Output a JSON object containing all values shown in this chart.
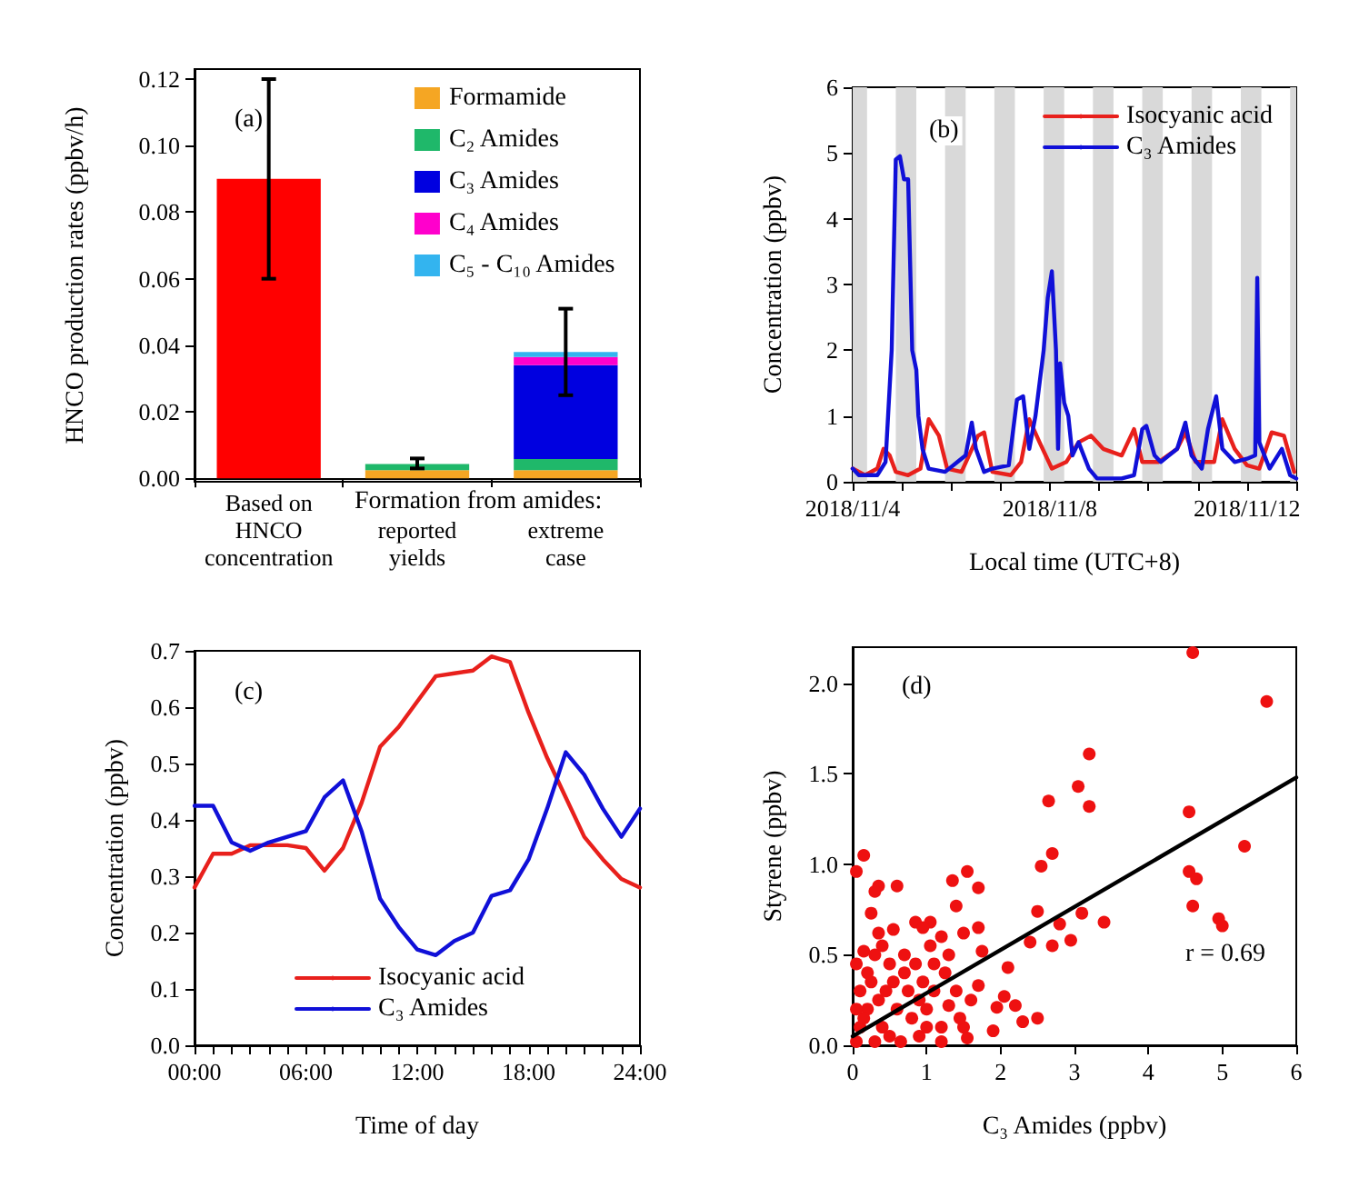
{
  "chart_data": [
    {
      "type": "bar",
      "stacked": true,
      "ylabel": "HNCO production rates (ppbv/h)",
      "categories": [
        "Based on\nHNCO\nconcentration",
        "reported\nyields",
        "extreme\ncase"
      ],
      "series": [
        {
          "color": "#ff0000",
          "values": [
            0.09,
            null,
            null
          ],
          "errors": [
            [
              0.06,
              0.12
            ],
            null,
            null
          ]
        },
        {
          "name": "Formamide",
          "color": "#f5a623",
          "values": [
            null,
            0.0025,
            0.0025
          ]
        },
        {
          "name": "C₂ Amides",
          "color": "#1fb86a",
          "values": [
            null,
            0.0018,
            0.0033
          ],
          "errors": [
            null,
            [
              0.003,
              0.006
            ],
            null
          ]
        },
        {
          "name": "C₃ Amides",
          "color": "#0000e0",
          "values": [
            null,
            null,
            0.0282
          ]
        },
        {
          "name": "C₄ Amides",
          "color": "#ff00cc",
          "values": [
            null,
            null,
            0.0025
          ]
        },
        {
          "name": "C₅ - C₁₀ Amides",
          "color": "#33b4ef",
          "values": [
            null,
            null,
            0.0015
          ],
          "errors": [
            null,
            null,
            [
              0.025,
              0.051
            ]
          ]
        }
      ],
      "ylim": [
        -0.001,
        0.123
      ],
      "yticks": [
        {
          "value": 0,
          "label": "0.00"
        },
        0.02,
        0.04,
        0.06,
        0.08,
        {
          "value": 0.1,
          "label": "0.10"
        },
        0.12
      ],
      "legend": "top right",
      "annotations": [
        "(a)",
        "Formation from amides:"
      ]
    },
    {
      "type": "line",
      "xlabel": "Local time (UTC+8)",
      "ylabel": "Concentration (ppbv)",
      "series": [
        {
          "name": "Isocyanic acid",
          "color": "#e8201c",
          "x": [
            "2018-11-04T00:00",
            "2018-11-04T06:00",
            "2018-11-04T12:00",
            "2018-11-04T15:00",
            "2018-11-04T18:00",
            "2018-11-04T21:00",
            "2018-11-05T03:00",
            "2018-11-05T09:00",
            "2018-11-05T13:00",
            "2018-11-05T18:00",
            "2018-11-05T22:00",
            "2018-11-06T05:00",
            "2018-11-06T13:00",
            "2018-11-06T16:00",
            "2018-11-06T20:00",
            "2018-11-07T05:00",
            "2018-11-07T10:00",
            "2018-11-07T14:00",
            "2018-11-07T19:00",
            "2018-11-08T01:00",
            "2018-11-08T08:00",
            "2018-11-08T14:00",
            "2018-11-08T20:00",
            "2018-11-09T02:00",
            "2018-11-09T11:00",
            "2018-11-09T17:00",
            "2018-11-09T21:00",
            "2018-11-10T05:00",
            "2018-11-10T14:00",
            "2018-11-10T18:00",
            "2018-11-10T23:00",
            "2018-11-11T08:00",
            "2018-11-11T12:00",
            "2018-11-11T18:00",
            "2018-11-12T00:00",
            "2018-11-12T06:00",
            "2018-11-12T12:00",
            "2018-11-12T18:00",
            "2018-11-12T23:00"
          ],
          "values": [
            0.2,
            0.1,
            0.2,
            0.5,
            0.4,
            0.15,
            0.1,
            0.2,
            0.95,
            0.7,
            0.2,
            0.15,
            0.7,
            0.75,
            0.15,
            0.1,
            0.3,
            0.95,
            0.6,
            0.2,
            0.3,
            0.6,
            0.7,
            0.5,
            0.4,
            0.8,
            0.3,
            0.3,
            0.5,
            0.75,
            0.3,
            0.3,
            0.95,
            0.5,
            0.25,
            0.2,
            0.75,
            0.7,
            0.15
          ]
        },
        {
          "name": "C₃ Amides",
          "color": "#1010d8",
          "x": [
            "2018-11-04T00:00",
            "2018-11-04T03:00",
            "2018-11-04T12:00",
            "2018-11-04T16:00",
            "2018-11-04T19:00",
            "2018-11-04T21:00",
            "2018-11-04T23:00",
            "2018-11-05T01:00",
            "2018-11-05T03:00",
            "2018-11-05T05:00",
            "2018-11-05T07:00",
            "2018-11-05T08:00",
            "2018-11-05T10:00",
            "2018-11-05T13:00",
            "2018-11-05T21:00",
            "2018-11-06T03:00",
            "2018-11-06T07:00",
            "2018-11-06T10:00",
            "2018-11-06T12:00",
            "2018-11-06T16:00",
            "2018-11-06T20:00",
            "2018-11-07T04:00",
            "2018-11-07T08:00",
            "2018-11-07T11:00",
            "2018-11-07T14:00",
            "2018-11-07T17:00",
            "2018-11-07T21:00",
            "2018-11-07T23:00",
            "2018-11-08T01:00",
            "2018-11-08T03:00",
            "2018-11-08T04:00",
            "2018-11-08T05:00",
            "2018-11-08T07:00",
            "2018-11-08T09:00",
            "2018-11-08T11:00",
            "2018-11-08T14:00",
            "2018-11-08T19:00",
            "2018-11-08T23:00",
            "2018-11-09T11:00",
            "2018-11-09T17:00",
            "2018-11-09T21:00",
            "2018-11-09T23:00",
            "2018-11-10T03:00",
            "2018-11-10T06:00",
            "2018-11-10T14:00",
            "2018-11-10T18:00",
            "2018-11-10T21:00",
            "2018-11-11T02:00",
            "2018-11-11T05:00",
            "2018-11-11T09:00",
            "2018-11-11T12:00",
            "2018-11-11T18:00",
            "2018-11-12T00:00",
            "2018-11-12T04:00",
            "2018-11-12T05:00",
            "2018-11-12T06:00",
            "2018-11-12T11:00",
            "2018-11-12T17:00",
            "2018-11-12T21:00",
            "2018-11-13T00:00"
          ],
          "values": [
            0.2,
            0.1,
            0.1,
            0.3,
            2.0,
            4.9,
            4.95,
            4.6,
            4.6,
            2.0,
            1.7,
            1.0,
            0.5,
            0.2,
            0.15,
            0.3,
            0.4,
            0.9,
            0.5,
            0.15,
            0.2,
            0.25,
            1.25,
            1.3,
            0.5,
            1.0,
            2.0,
            2.8,
            3.2,
            2.0,
            0.5,
            1.8,
            1.2,
            1.0,
            0.4,
            0.6,
            0.2,
            0.05,
            0.05,
            0.1,
            0.8,
            0.85,
            0.4,
            0.3,
            0.5,
            0.9,
            0.4,
            0.2,
            0.8,
            1.3,
            0.5,
            0.3,
            0.35,
            0.4,
            3.1,
            0.6,
            0.2,
            0.5,
            0.1,
            0.05
          ]
        }
      ],
      "xlim": [
        "2018-11-04T00:00",
        "2018-11-13T00:00"
      ],
      "xticks": [
        {
          "value": "2018-11-04",
          "label": "2018/11/4"
        },
        {
          "value": "2018-11-05",
          "label": null
        },
        {
          "value": "2018-11-06",
          "label": null
        },
        {
          "value": "2018-11-07",
          "label": null
        },
        {
          "value": "2018-11-08",
          "label": "2018/11/8"
        },
        {
          "value": "2018-11-09",
          "label": null
        },
        {
          "value": "2018-11-10",
          "label": null
        },
        {
          "value": "2018-11-11",
          "label": null
        },
        {
          "value": "2018-11-12",
          "label": "2018/11/12"
        },
        {
          "value": "2018-11-13",
          "label": null
        }
      ],
      "ylim": [
        0,
        6
      ],
      "yticks": [
        0,
        1,
        2,
        3,
        4,
        5,
        6
      ],
      "bands": [
        {
          "axis": "x",
          "from": "2018-11-04T00:00",
          "to": "2018-11-04T07:00",
          "color": "#d9d9d9"
        },
        {
          "axis": "x",
          "from": "2018-11-04T21:00",
          "to": "2018-11-05T07:00",
          "color": "#d9d9d9"
        },
        {
          "axis": "x",
          "from": "2018-11-05T21:00",
          "to": "2018-11-06T07:00",
          "color": "#d9d9d9"
        },
        {
          "axis": "x",
          "from": "2018-11-06T21:00",
          "to": "2018-11-07T07:00",
          "color": "#d9d9d9"
        },
        {
          "axis": "x",
          "from": "2018-11-07T21:00",
          "to": "2018-11-08T07:00",
          "color": "#d9d9d9"
        },
        {
          "axis": "x",
          "from": "2018-11-08T21:00",
          "to": "2018-11-09T07:00",
          "color": "#d9d9d9"
        },
        {
          "axis": "x",
          "from": "2018-11-09T21:00",
          "to": "2018-11-10T07:00",
          "color": "#d9d9d9"
        },
        {
          "axis": "x",
          "from": "2018-11-10T21:00",
          "to": "2018-11-11T07:00",
          "color": "#d9d9d9"
        },
        {
          "axis": "x",
          "from": "2018-11-11T21:00",
          "to": "2018-11-12T07:00",
          "color": "#d9d9d9"
        },
        {
          "axis": "x",
          "from": "2018-11-12T21:00",
          "to": "2018-11-13T00:00",
          "color": "#d9d9d9"
        }
      ],
      "legend": "top right",
      "annotations": [
        "(b)"
      ]
    },
    {
      "type": "line",
      "xlabel": "Time of day",
      "ylabel": "Concentration (ppbv)",
      "x": [
        0,
        1,
        2,
        3,
        4,
        5,
        6,
        7,
        8,
        9,
        10,
        11,
        12,
        13,
        14,
        15,
        16,
        17,
        18,
        19,
        20,
        21,
        22,
        23,
        24
      ],
      "series": [
        {
          "name": "Isocyanic acid",
          "color": "#e8201c",
          "values": [
            0.28,
            0.34,
            0.34,
            0.355,
            0.355,
            0.355,
            0.35,
            0.31,
            0.35,
            0.43,
            0.53,
            0.565,
            0.61,
            0.655,
            0.66,
            0.665,
            0.69,
            0.68,
            0.59,
            0.51,
            0.44,
            0.37,
            0.33,
            0.295,
            0.28
          ]
        },
        {
          "name": "C₃ Amides",
          "color": "#1010d8",
          "values": [
            0.425,
            0.425,
            0.36,
            0.345,
            0.36,
            0.37,
            0.38,
            0.44,
            0.47,
            0.38,
            0.26,
            0.21,
            0.17,
            0.16,
            0.185,
            0.2,
            0.265,
            0.275,
            0.33,
            0.42,
            0.52,
            0.48,
            0.42,
            0.37,
            0.42
          ]
        }
      ],
      "xlim": [
        0,
        24
      ],
      "xticks": [
        {
          "value": 0,
          "label": "00:00"
        },
        {
          "value": 1,
          "label": null
        },
        {
          "value": 2,
          "label": null
        },
        {
          "value": 3,
          "label": null
        },
        {
          "value": 4,
          "label": null
        },
        {
          "value": 5,
          "label": null
        },
        {
          "value": 6,
          "label": "06:00"
        },
        {
          "value": 7,
          "label": null
        },
        {
          "value": 8,
          "label": null
        },
        {
          "value": 9,
          "label": null
        },
        {
          "value": 10,
          "label": null
        },
        {
          "value": 11,
          "label": null
        },
        {
          "value": 12,
          "label": "12:00"
        },
        {
          "value": 13,
          "label": null
        },
        {
          "value": 14,
          "label": null
        },
        {
          "value": 15,
          "label": null
        },
        {
          "value": 16,
          "label": null
        },
        {
          "value": 17,
          "label": null
        },
        {
          "value": 18,
          "label": "18:00"
        },
        {
          "value": 19,
          "label": null
        },
        {
          "value": 20,
          "label": null
        },
        {
          "value": 21,
          "label": null
        },
        {
          "value": 22,
          "label": null
        },
        {
          "value": 23,
          "label": null
        },
        {
          "value": 24,
          "label": "24:00"
        }
      ],
      "ylim": [
        0,
        0.7
      ],
      "yticks": [
        {
          "value": 0,
          "label": "0.0"
        },
        0.1,
        0.2,
        0.3,
        0.4,
        0.5,
        0.6,
        0.7
      ],
      "legend": "bottom",
      "annotations": [
        "(c)"
      ]
    },
    {
      "type": "scatter",
      "xlabel": "C₃ Amides (ppbv)",
      "ylabel": "Styrene (ppbv)",
      "series": [
        {
          "color": "#ee1111",
          "marker": "circle",
          "x": [
            4.6,
            5.6,
            3.2,
            3.05,
            2.65,
            3.2,
            4.55,
            5.3,
            2.7,
            2.55,
            4.55,
            4.65,
            4.6,
            4.95,
            5.0,
            3.1,
            3.4,
            2.5,
            2.8,
            2.95,
            2.7,
            2.4,
            2.1,
            2.05,
            1.95,
            2.2,
            2.3,
            2.5,
            1.9,
            1.55,
            1.5,
            1.55,
            1.4,
            1.35,
            1.7,
            1.7,
            1.5,
            1.75,
            1.7,
            0.15,
            0.05,
            0.35,
            0.3,
            0.6,
            0.25,
            0.85,
            1.05,
            0.95,
            0.55,
            0.35,
            1.2,
            1.05,
            0.4,
            0.05,
            0.1,
            0.2,
            0.1,
            0.05,
            0.15,
            0.3,
            0.25,
            0.35,
            0.4,
            0.5,
            0.6,
            0.55,
            0.5,
            0.7,
            0.75,
            0.8,
            0.9,
            1.0,
            0.95,
            0.85,
            1.1,
            1.2,
            1.25,
            1.3,
            1.4,
            1.45,
            1.3,
            0.65,
            0.3,
            1.1,
            1.6,
            1.2,
            0.15,
            0.45,
            0.7,
            0.05,
            0.2,
            0.9,
            1.0
          ],
          "values": [
            2.17,
            1.9,
            1.61,
            1.43,
            1.35,
            1.32,
            1.29,
            1.1,
            1.06,
            0.99,
            0.96,
            0.92,
            0.77,
            0.7,
            0.66,
            0.73,
            0.68,
            0.74,
            0.67,
            0.58,
            0.55,
            0.57,
            0.43,
            0.27,
            0.21,
            0.22,
            0.13,
            0.15,
            0.08,
            0.04,
            0.1,
            0.96,
            0.77,
            0.91,
            0.87,
            0.65,
            0.62,
            0.52,
            0.33,
            1.05,
            0.96,
            0.88,
            0.85,
            0.88,
            0.73,
            0.68,
            0.68,
            0.65,
            0.64,
            0.62,
            0.6,
            0.55,
            0.55,
            0.02,
            0.1,
            0.2,
            0.3,
            0.45,
            0.52,
            0.5,
            0.35,
            0.25,
            0.1,
            0.05,
            0.2,
            0.35,
            0.45,
            0.5,
            0.3,
            0.15,
            0.05,
            0.2,
            0.35,
            0.45,
            0.3,
            0.1,
            0.4,
            0.22,
            0.3,
            0.15,
            0.5,
            0.02,
            0.02,
            0.45,
            0.25,
            0.02,
            0.15,
            0.3,
            0.4,
            0.2,
            0.4,
            0.25,
            0.1
          ]
        },
        {
          "type": "line",
          "color": "#000000",
          "marker": "none",
          "x": [
            0,
            6
          ],
          "values": [
            0.05,
            1.48
          ]
        }
      ],
      "xlim": [
        0,
        6
      ],
      "xticks": [
        0,
        1,
        2,
        3,
        4,
        5,
        6
      ],
      "ylim": [
        0,
        2.2
      ],
      "yticks": [
        {
          "value": 0,
          "label": "0.0"
        },
        0.5,
        {
          "value": 1,
          "label": "1.0"
        },
        1.5,
        {
          "value": 2,
          "label": "2.0"
        }
      ],
      "annotations": [
        "(d)",
        "r = 0.69"
      ]
    }
  ]
}
